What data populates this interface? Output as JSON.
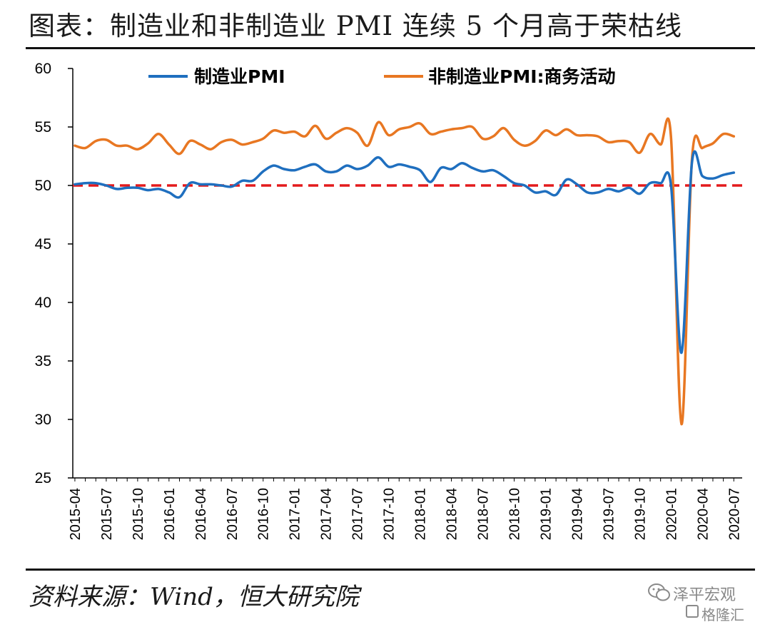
{
  "title": "图表：制造业和非制造业 PMI 连续 5 个月高于荣枯线",
  "source": "资料来源：Wind，恒大研究院",
  "watermark": {
    "line1": "泽平宏观",
    "line2": "格隆汇"
  },
  "chart_data": {
    "type": "line",
    "ylim": [
      25,
      60
    ],
    "yticks": [
      25,
      30,
      35,
      40,
      45,
      50,
      55,
      60
    ],
    "xticks": [
      "2015-04",
      "2015-07",
      "2015-10",
      "2016-01",
      "2016-04",
      "2016-07",
      "2016-10",
      "2017-01",
      "2017-04",
      "2017-07",
      "2017-10",
      "2018-01",
      "2018-04",
      "2018-07",
      "2018-10",
      "2019-01",
      "2019-04",
      "2019-07",
      "2019-10",
      "2020-01",
      "2020-04",
      "2020-07"
    ],
    "x": [
      "2015-04",
      "2015-05",
      "2015-06",
      "2015-07",
      "2015-08",
      "2015-09",
      "2015-10",
      "2015-11",
      "2015-12",
      "2016-01",
      "2016-02",
      "2016-03",
      "2016-04",
      "2016-05",
      "2016-06",
      "2016-07",
      "2016-08",
      "2016-09",
      "2016-10",
      "2016-11",
      "2016-12",
      "2017-01",
      "2017-02",
      "2017-03",
      "2017-04",
      "2017-05",
      "2017-06",
      "2017-07",
      "2017-08",
      "2017-09",
      "2017-10",
      "2017-11",
      "2017-12",
      "2018-01",
      "2018-02",
      "2018-03",
      "2018-04",
      "2018-05",
      "2018-06",
      "2018-07",
      "2018-08",
      "2018-09",
      "2018-10",
      "2018-11",
      "2018-12",
      "2019-01",
      "2019-02",
      "2019-03",
      "2019-04",
      "2019-05",
      "2019-06",
      "2019-07",
      "2019-08",
      "2019-09",
      "2019-10",
      "2019-11",
      "2019-12",
      "2020-01",
      "2020-02",
      "2020-03",
      "2020-04",
      "2020-05",
      "2020-06",
      "2020-07"
    ],
    "series": [
      {
        "name": "制造业PMI",
        "color": "#1f6fbf",
        "values": [
          50.1,
          50.2,
          50.2,
          50.0,
          49.7,
          49.8,
          49.8,
          49.6,
          49.7,
          49.4,
          49.0,
          50.2,
          50.1,
          50.1,
          50.0,
          49.9,
          50.4,
          50.4,
          51.2,
          51.7,
          51.4,
          51.3,
          51.6,
          51.8,
          51.2,
          51.2,
          51.7,
          51.4,
          51.7,
          52.4,
          51.6,
          51.8,
          51.6,
          51.3,
          50.3,
          51.5,
          51.4,
          51.9,
          51.5,
          51.2,
          51.3,
          50.8,
          50.2,
          50.0,
          49.4,
          49.5,
          49.2,
          50.5,
          50.1,
          49.4,
          49.4,
          49.7,
          49.5,
          49.8,
          49.3,
          50.2,
          50.2,
          50.0,
          35.7,
          52.0,
          50.8,
          50.6,
          50.9,
          51.1
        ]
      },
      {
        "name": "非制造业PMI:商务活动",
        "color": "#e87722",
        "values": [
          53.4,
          53.2,
          53.8,
          53.9,
          53.4,
          53.4,
          53.1,
          53.6,
          54.4,
          53.5,
          52.7,
          53.8,
          53.5,
          53.1,
          53.7,
          53.9,
          53.5,
          53.7,
          54.0,
          54.7,
          54.5,
          54.6,
          54.2,
          55.1,
          54.0,
          54.5,
          54.9,
          54.5,
          53.4,
          55.4,
          54.3,
          54.8,
          55.0,
          55.3,
          54.4,
          54.6,
          54.8,
          54.9,
          55.0,
          54.0,
          54.2,
          54.9,
          53.9,
          53.4,
          53.8,
          54.7,
          54.3,
          54.8,
          54.3,
          54.3,
          54.2,
          53.7,
          53.8,
          53.7,
          52.8,
          54.4,
          53.5,
          54.1,
          29.6,
          52.3,
          53.2,
          53.6,
          54.4,
          54.2
        ]
      }
    ],
    "reference_line": {
      "value": 50,
      "color": "#e31a1c",
      "style": "dashed"
    },
    "legend": "top"
  }
}
